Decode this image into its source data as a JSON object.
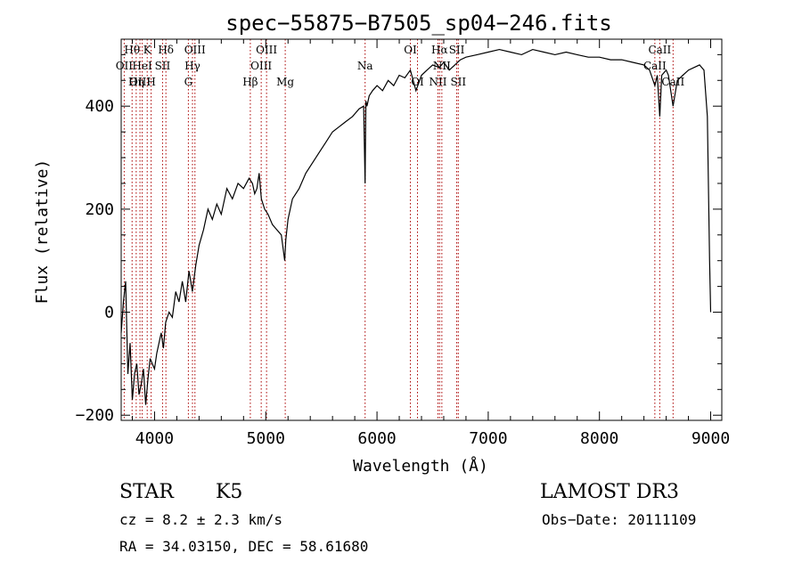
{
  "chart_data": {
    "type": "line",
    "title": "spec−55875−B7505_sp04−246.fits",
    "xlabel": "Wavelength (Å)",
    "ylabel": "Flux (relative)",
    "xlim": [
      3700,
      9100
    ],
    "ylim": [
      -210,
      530
    ],
    "x_ticks": [
      4000,
      5000,
      6000,
      7000,
      8000,
      9000
    ],
    "x_tick_labels": [
      "4000",
      "5000",
      "6000",
      "7000",
      "8000",
      "9000"
    ],
    "y_ticks": [
      -200,
      0,
      200,
      400
    ],
    "y_tick_labels": [
      "−200",
      "0",
      "200",
      "400"
    ],
    "series": [
      {
        "name": "flux",
        "x": [
          3700,
          3720,
          3740,
          3760,
          3780,
          3800,
          3820,
          3840,
          3860,
          3880,
          3900,
          3920,
          3940,
          3960,
          3980,
          4000,
          4020,
          4040,
          4060,
          4080,
          4100,
          4130,
          4160,
          4190,
          4220,
          4250,
          4280,
          4310,
          4340,
          4370,
          4400,
          4440,
          4480,
          4520,
          4560,
          4600,
          4650,
          4700,
          4750,
          4800,
          4850,
          4880,
          4900,
          4920,
          4940,
          4960,
          4990,
          5020,
          5060,
          5100,
          5140,
          5170,
          5180,
          5200,
          5240,
          5300,
          5360,
          5420,
          5480,
          5540,
          5600,
          5660,
          5720,
          5780,
          5840,
          5880,
          5893,
          5900,
          5910,
          5930,
          5960,
          6000,
          6050,
          6100,
          6150,
          6200,
          6250,
          6300,
          6350,
          6400,
          6450,
          6500,
          6560,
          6600,
          6650,
          6700,
          6750,
          6800,
          6900,
          7000,
          7100,
          7200,
          7300,
          7400,
          7500,
          7600,
          7700,
          7800,
          7900,
          8000,
          8100,
          8200,
          8300,
          8400,
          8450,
          8498,
          8520,
          8542,
          8560,
          8600,
          8620,
          8662,
          8700,
          8750,
          8800,
          8850,
          8900,
          8940,
          8970,
          8990,
          9000,
          9000
        ],
        "values": [
          -40,
          20,
          60,
          -120,
          -60,
          -170,
          -120,
          -100,
          -160,
          -140,
          -110,
          -180,
          -130,
          -90,
          -100,
          -110,
          -80,
          -60,
          -40,
          -70,
          -20,
          0,
          -10,
          40,
          20,
          60,
          20,
          80,
          40,
          90,
          130,
          160,
          200,
          180,
          210,
          190,
          240,
          220,
          250,
          240,
          260,
          250,
          230,
          240,
          270,
          220,
          200,
          190,
          170,
          160,
          150,
          100,
          140,
          180,
          220,
          240,
          270,
          290,
          310,
          330,
          350,
          360,
          370,
          380,
          395,
          400,
          250,
          410,
          400,
          420,
          430,
          440,
          430,
          450,
          440,
          460,
          455,
          470,
          430,
          460,
          470,
          480,
          475,
          485,
          470,
          480,
          490,
          495,
          500,
          505,
          510,
          505,
          500,
          510,
          505,
          500,
          505,
          500,
          495,
          495,
          490,
          490,
          485,
          480,
          470,
          440,
          460,
          380,
          460,
          470,
          460,
          400,
          450,
          460,
          470,
          475,
          480,
          470,
          380,
          100,
          0,
          0
        ]
      }
    ],
    "lines": [
      {
        "name": "Hθ",
        "x": 3798,
        "row": 0
      },
      {
        "name": "OII",
        "x": 3727,
        "row": 1
      },
      {
        "name": "OIII",
        "x": 3869,
        "row": 2
      },
      {
        "name": "HeI",
        "x": 3889,
        "row": 1
      },
      {
        "name": "K",
        "x": 3934,
        "row": 0
      },
      {
        "name": "Hη",
        "x": 3835,
        "row": 2
      },
      {
        "name": "SII",
        "x": 4072,
        "row": 1
      },
      {
        "name": "H",
        "x": 3969,
        "row": 2
      },
      {
        "name": "Hδ",
        "x": 4102,
        "row": 0
      },
      {
        "name": "OIII",
        "x": 4363,
        "row": 0
      },
      {
        "name": "Hγ",
        "x": 4341,
        "row": 1
      },
      {
        "name": "G",
        "x": 4304,
        "row": 2
      },
      {
        "name": "Hβ",
        "x": 4861,
        "row": 2
      },
      {
        "name": "OIII",
        "x": 5007,
        "row": 0
      },
      {
        "name": "OIII",
        "x": 4959,
        "row": 1
      },
      {
        "name": "Mg",
        "x": 5175,
        "row": 2
      },
      {
        "name": "Na",
        "x": 5893,
        "row": 1
      },
      {
        "name": "OI",
        "x": 6300,
        "row": 0
      },
      {
        "name": "OI",
        "x": 6364,
        "row": 2
      },
      {
        "name": "Hα",
        "x": 6563,
        "row": 0
      },
      {
        "name": "NII",
        "x": 6548,
        "row": 2
      },
      {
        "name": "SII",
        "x": 6717,
        "row": 0
      },
      {
        "name": "NII",
        "x": 6583,
        "row": 1
      },
      {
        "name": "SII",
        "x": 6731,
        "row": 2
      },
      {
        "name": "CaII",
        "x": 8542,
        "row": 0
      },
      {
        "name": "CaII",
        "x": 8498,
        "row": 1
      },
      {
        "name": "CaII",
        "x": 8662,
        "row": 2
      }
    ]
  },
  "info": {
    "class": "STAR",
    "subclass": "K5",
    "survey": "LAMOST DR3",
    "cz": "cz = 8.2 ± 2.3 km/s",
    "obs_date": "Obs−Date: 20111109",
    "coords": "RA =  34.03150, DEC =  58.61680"
  },
  "colors": {
    "spectrum": "#000000",
    "line_marker": "#aa0000",
    "axes": "#000000"
  }
}
